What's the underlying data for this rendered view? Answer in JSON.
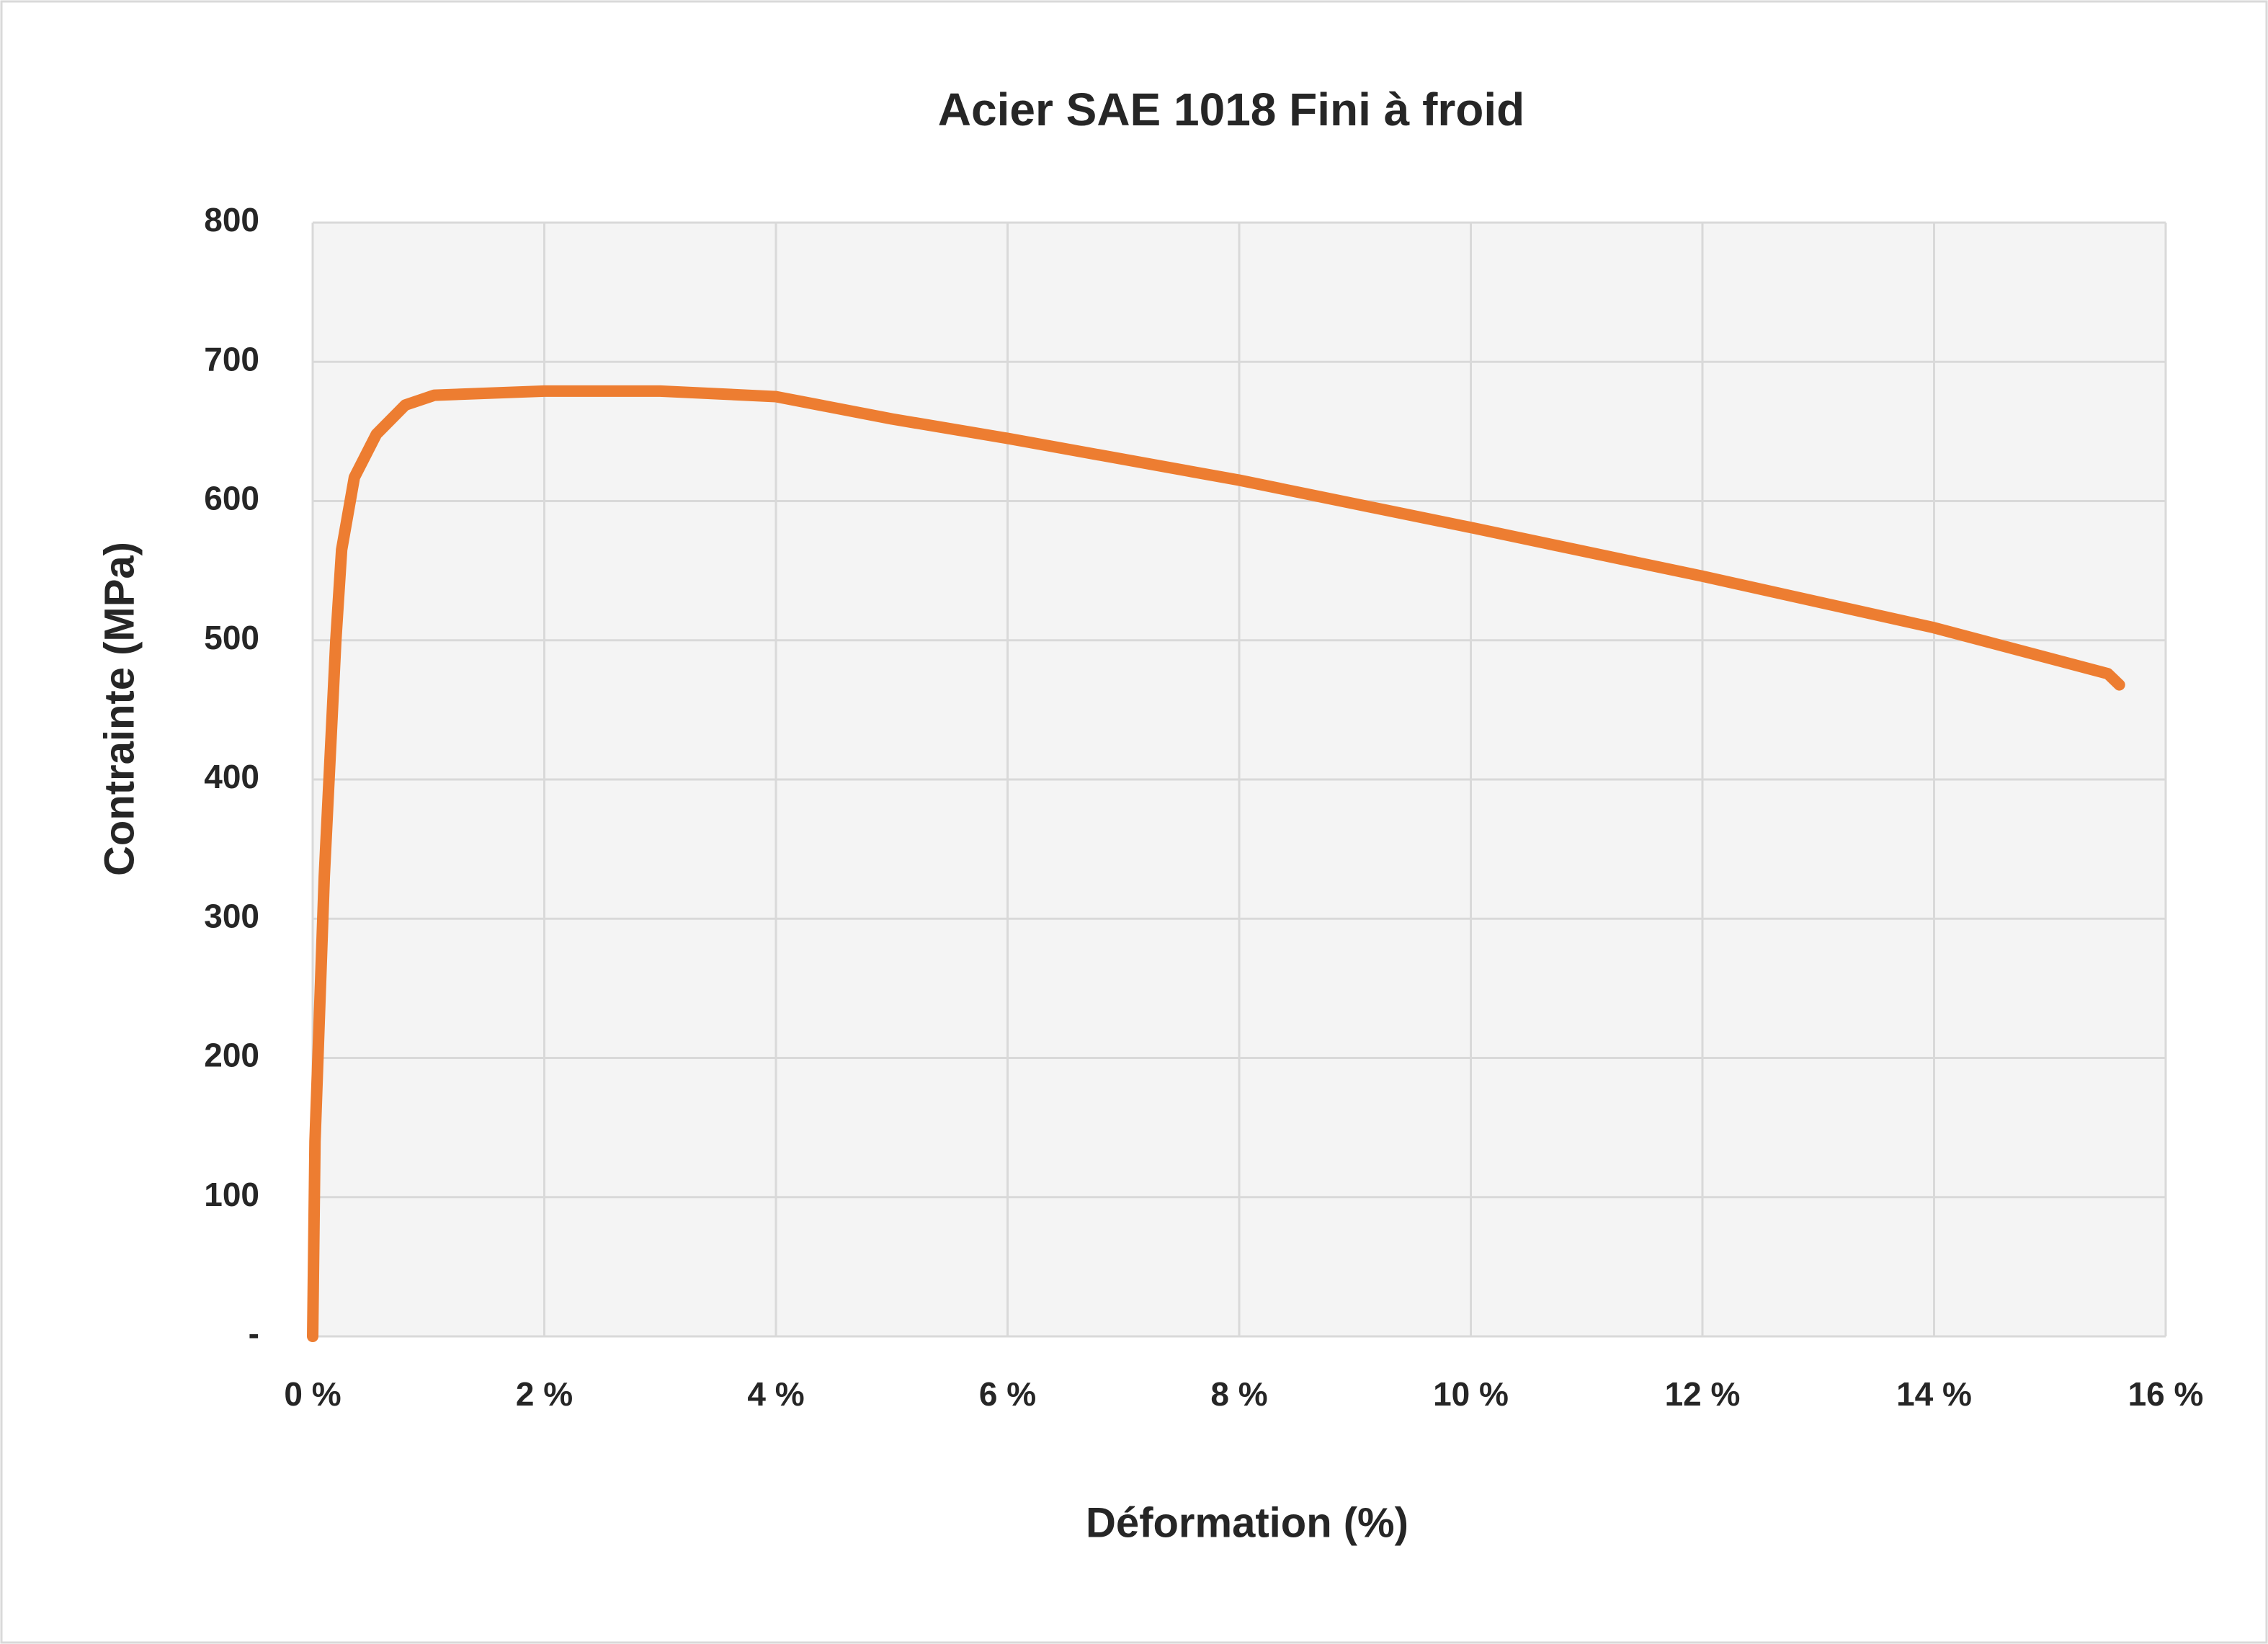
{
  "chart_data": {
    "type": "line",
    "title": "Acier SAE 1018 Fini à froid",
    "x_label": "Déformation (%)",
    "y_label": "Contrainte (MPa)",
    "x": [
      0,
      0.02,
      0.1,
      0.2,
      0.25,
      0.36,
      0.55,
      0.8,
      1.05,
      2,
      3,
      4,
      5,
      6,
      8,
      10,
      12,
      14,
      15.5,
      15.6
    ],
    "series": [
      {
        "name": "Contrainte",
        "color": "#ed7d31",
        "values": [
          0,
          140,
          330,
          500,
          565,
          617,
          648,
          669,
          676,
          679,
          679,
          675,
          659,
          645,
          615,
          581,
          546,
          509,
          476,
          468
        ]
      }
    ],
    "xlim": [
      0,
      16
    ],
    "xticks": [
      {
        "value": 0,
        "label": "0 %"
      },
      {
        "value": 2,
        "label": "2 %"
      },
      {
        "value": 4,
        "label": "4 %"
      },
      {
        "value": 6,
        "label": "6 %"
      },
      {
        "value": 8,
        "label": "8 %"
      },
      {
        "value": 10,
        "label": "10 %"
      },
      {
        "value": 12,
        "label": "12 %"
      },
      {
        "value": 14,
        "label": "14 %"
      },
      {
        "value": 16,
        "label": "16 %"
      }
    ],
    "ylim": [
      0,
      800
    ],
    "yticks": [
      {
        "value": 0,
        "label": "-"
      },
      100,
      200,
      300,
      400,
      500,
      600,
      700,
      800
    ],
    "grid": true
  }
}
